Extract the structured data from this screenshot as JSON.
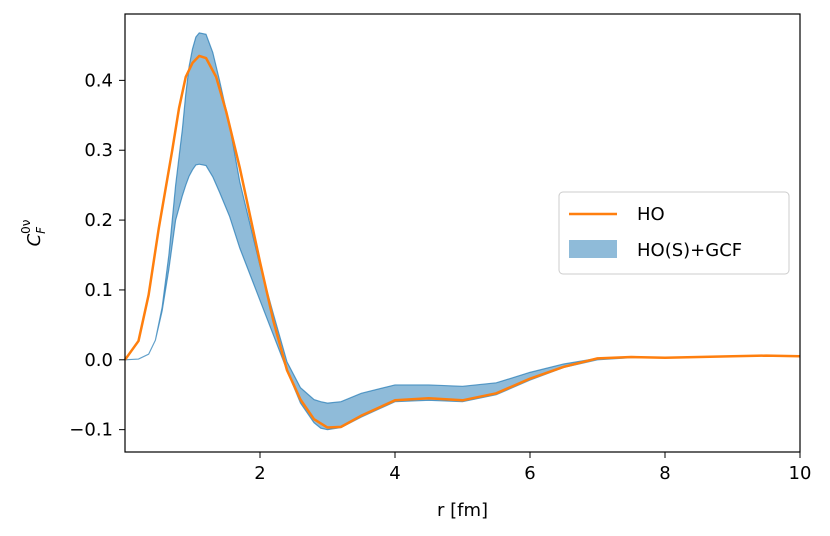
{
  "chart_data": {
    "type": "line",
    "xlabel": "r [fm]",
    "ylabel": {
      "base": "C",
      "sup": "0ν",
      "sub": "F"
    },
    "xlim": [
      0,
      10
    ],
    "ylim": [
      -0.132,
      0.495
    ],
    "xticks": [
      2,
      4,
      6,
      8,
      10
    ],
    "xtick_labels": [
      "2",
      "4",
      "6",
      "8",
      "10"
    ],
    "yticks": [
      -0.1,
      0.0,
      0.1,
      0.2,
      0.3,
      0.4
    ],
    "ytick_labels": [
      "−0.1",
      "0.0",
      "0.1",
      "0.2",
      "0.3",
      "0.4"
    ],
    "grid": false,
    "legend_position": "center-right",
    "series": [
      {
        "name": "HO",
        "kind": "line",
        "color": "#ff7f0e",
        "x": [
          0.0,
          0.2,
          0.35,
          0.5,
          0.7,
          0.8,
          0.9,
          1.0,
          1.1,
          1.2,
          1.35,
          1.5,
          1.7,
          2.0,
          2.2,
          2.4,
          2.6,
          2.8,
          3.0,
          3.2,
          3.5,
          4.0,
          4.5,
          5.0,
          5.5,
          6.0,
          6.5,
          7.0,
          7.5,
          8.0,
          8.5,
          9.0,
          9.5,
          10.0
        ],
        "y": [
          0.0,
          0.027,
          0.093,
          0.188,
          0.3,
          0.36,
          0.405,
          0.425,
          0.435,
          0.432,
          0.405,
          0.355,
          0.275,
          0.14,
          0.055,
          -0.015,
          -0.057,
          -0.085,
          -0.097,
          -0.096,
          -0.08,
          -0.058,
          -0.055,
          -0.058,
          -0.048,
          -0.027,
          -0.01,
          0.002,
          0.004,
          0.003,
          0.004,
          0.005,
          0.006,
          0.005
        ]
      },
      {
        "name": "HO(S)+GCF",
        "kind": "band",
        "color": "#1f77b4",
        "fill_opacity": 0.5,
        "x": [
          0.0,
          0.2,
          0.35,
          0.45,
          0.55,
          0.65,
          0.75,
          0.85,
          0.9,
          0.95,
          1.0,
          1.05,
          1.1,
          1.2,
          1.3,
          1.4,
          1.55,
          1.7,
          2.0,
          2.2,
          2.4,
          2.6,
          2.8,
          2.9,
          3.0,
          3.2,
          3.5,
          4.0,
          4.5,
          5.0,
          5.5,
          6.0,
          6.5,
          7.0,
          7.5,
          8.0,
          8.5,
          9.0,
          9.5,
          10.0
        ],
        "upper": [
          0.0,
          0.001,
          0.008,
          0.028,
          0.075,
          0.15,
          0.25,
          0.33,
          0.38,
          0.42,
          0.445,
          0.462,
          0.468,
          0.466,
          0.44,
          0.4,
          0.335,
          0.255,
          0.135,
          0.065,
          -0.003,
          -0.04,
          -0.057,
          -0.06,
          -0.062,
          -0.06,
          -0.048,
          -0.036,
          -0.036,
          -0.038,
          -0.033,
          -0.018,
          -0.006,
          0.002,
          0.004,
          0.003,
          0.004,
          0.005,
          0.006,
          0.005
        ],
        "lower": [
          0.0,
          0.001,
          0.008,
          0.028,
          0.07,
          0.13,
          0.2,
          0.235,
          0.25,
          0.263,
          0.272,
          0.279,
          0.28,
          0.278,
          0.262,
          0.24,
          0.205,
          0.16,
          0.085,
          0.035,
          -0.015,
          -0.062,
          -0.09,
          -0.098,
          -0.1,
          -0.097,
          -0.082,
          -0.06,
          -0.058,
          -0.06,
          -0.05,
          -0.029,
          -0.011,
          0.0,
          0.003,
          0.003,
          0.004,
          0.005,
          0.006,
          0.005
        ]
      }
    ]
  }
}
